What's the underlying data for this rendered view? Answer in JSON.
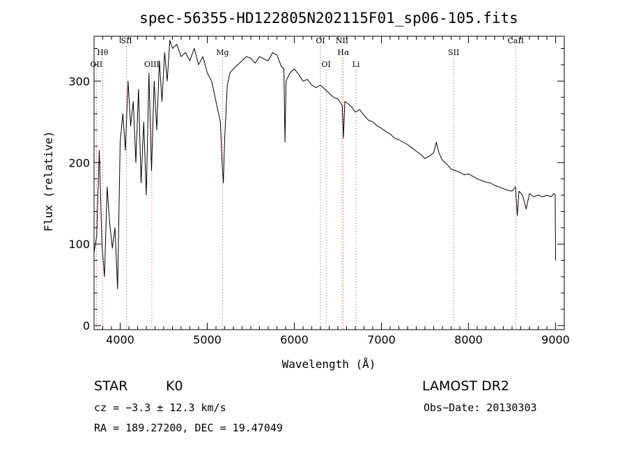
{
  "chart_data": {
    "type": "line",
    "title": "spec-56355-HD122805N202115F01_sp06-105.fits",
    "xlabel": "Wavelength (Å)",
    "ylabel": "Flux (relative)",
    "xlim": [
      3700,
      9100
    ],
    "ylim": [
      -5,
      355
    ],
    "xticks": [
      4000,
      5000,
      6000,
      7000,
      8000,
      9000
    ],
    "yticks": [
      0,
      100,
      200,
      300
    ],
    "grid": false,
    "series": [
      {
        "x": [
          3700,
          3730,
          3760,
          3790,
          3820,
          3850,
          3880,
          3910,
          3940,
          3970,
          4000,
          4030,
          4060,
          4090,
          4120,
          4150,
          4180,
          4210,
          4240,
          4270,
          4300,
          4330,
          4360,
          4390,
          4420,
          4450,
          4480,
          4510,
          4540,
          4570,
          4600,
          4650,
          4700,
          4750,
          4800,
          4850,
          4900,
          4950,
          5000,
          5050,
          5100,
          5150,
          5170,
          5185,
          5200,
          5230,
          5260,
          5300,
          5350,
          5400,
          5450,
          5500,
          5550,
          5600,
          5650,
          5700,
          5750,
          5800,
          5850,
          5880,
          5893,
          5905,
          5950,
          6000,
          6050,
          6100,
          6150,
          6200,
          6250,
          6300,
          6350,
          6400,
          6450,
          6500,
          6550,
          6563,
          6580,
          6620,
          6660,
          6700,
          6750,
          6800,
          6850,
          6900,
          6950,
          7000,
          7050,
          7100,
          7150,
          7200,
          7250,
          7300,
          7350,
          7400,
          7450,
          7500,
          7550,
          7600,
          7630,
          7660,
          7700,
          7750,
          7800,
          7850,
          7900,
          7950,
          8000,
          8050,
          8100,
          8150,
          8200,
          8250,
          8300,
          8350,
          8400,
          8450,
          8500,
          8540,
          8560,
          8580,
          8620,
          8662,
          8700,
          8750,
          8800,
          8850,
          8900,
          8950,
          8980,
          8995,
          9000
        ],
        "values": [
          90,
          110,
          215,
          100,
          60,
          170,
          125,
          95,
          120,
          45,
          225,
          260,
          215,
          300,
          245,
          275,
          200,
          290,
          175,
          250,
          160,
          310,
          190,
          300,
          240,
          325,
          275,
          335,
          300,
          350,
          340,
          345,
          330,
          335,
          325,
          340,
          320,
          330,
          310,
          300,
          275,
          250,
          200,
          175,
          230,
          295,
          310,
          315,
          320,
          325,
          330,
          328,
          322,
          330,
          327,
          325,
          335,
          332,
          318,
          315,
          225,
          300,
          310,
          315,
          308,
          300,
          302,
          295,
          292,
          295,
          290,
          285,
          280,
          278,
          270,
          230,
          275,
          272,
          268,
          262,
          265,
          258,
          252,
          250,
          245,
          242,
          238,
          235,
          230,
          228,
          225,
          222,
          218,
          214,
          210,
          205,
          208,
          212,
          225,
          212,
          203,
          198,
          192,
          190,
          188,
          185,
          186,
          183,
          180,
          178,
          176,
          175,
          172,
          170,
          168,
          166,
          165,
          170,
          135,
          165,
          160,
          143,
          162,
          158,
          160,
          158,
          160,
          158,
          162,
          160,
          80
        ]
      }
    ],
    "lines": [
      {
        "name": "OII",
        "x": 3727,
        "row": 3
      },
      {
        "name": "Hθ",
        "x": 3798,
        "row": 2
      },
      {
        "name": "SII",
        "x": 4072,
        "row": 1
      },
      {
        "name": "OIII",
        "x": 4363,
        "row": 3
      },
      {
        "name": "Mg",
        "x": 5175,
        "row": 2
      },
      {
        "name": "OI",
        "x": 6300,
        "row": 1
      },
      {
        "name": "OI",
        "x": 6364,
        "row": 3
      },
      {
        "name": "NII",
        "x": 6548,
        "row": 1
      },
      {
        "name": "Hα",
        "x": 6563,
        "row": 2
      },
      {
        "name": "Li",
        "x": 6708,
        "row": 3
      },
      {
        "name": "SII",
        "x": 7830,
        "row": 2
      },
      {
        "name": "CaII",
        "x": 8542,
        "row": 1
      }
    ]
  },
  "info": {
    "object_class": "STAR",
    "subclass": "K0",
    "survey": "LAMOST DR2",
    "redshift_text": "cz = −3.3 ± 12.3 km/s",
    "obs_date_text": "Obs−Date: 20130303",
    "coords_text": "RA = 189.27200, DEC =  19.47049"
  }
}
